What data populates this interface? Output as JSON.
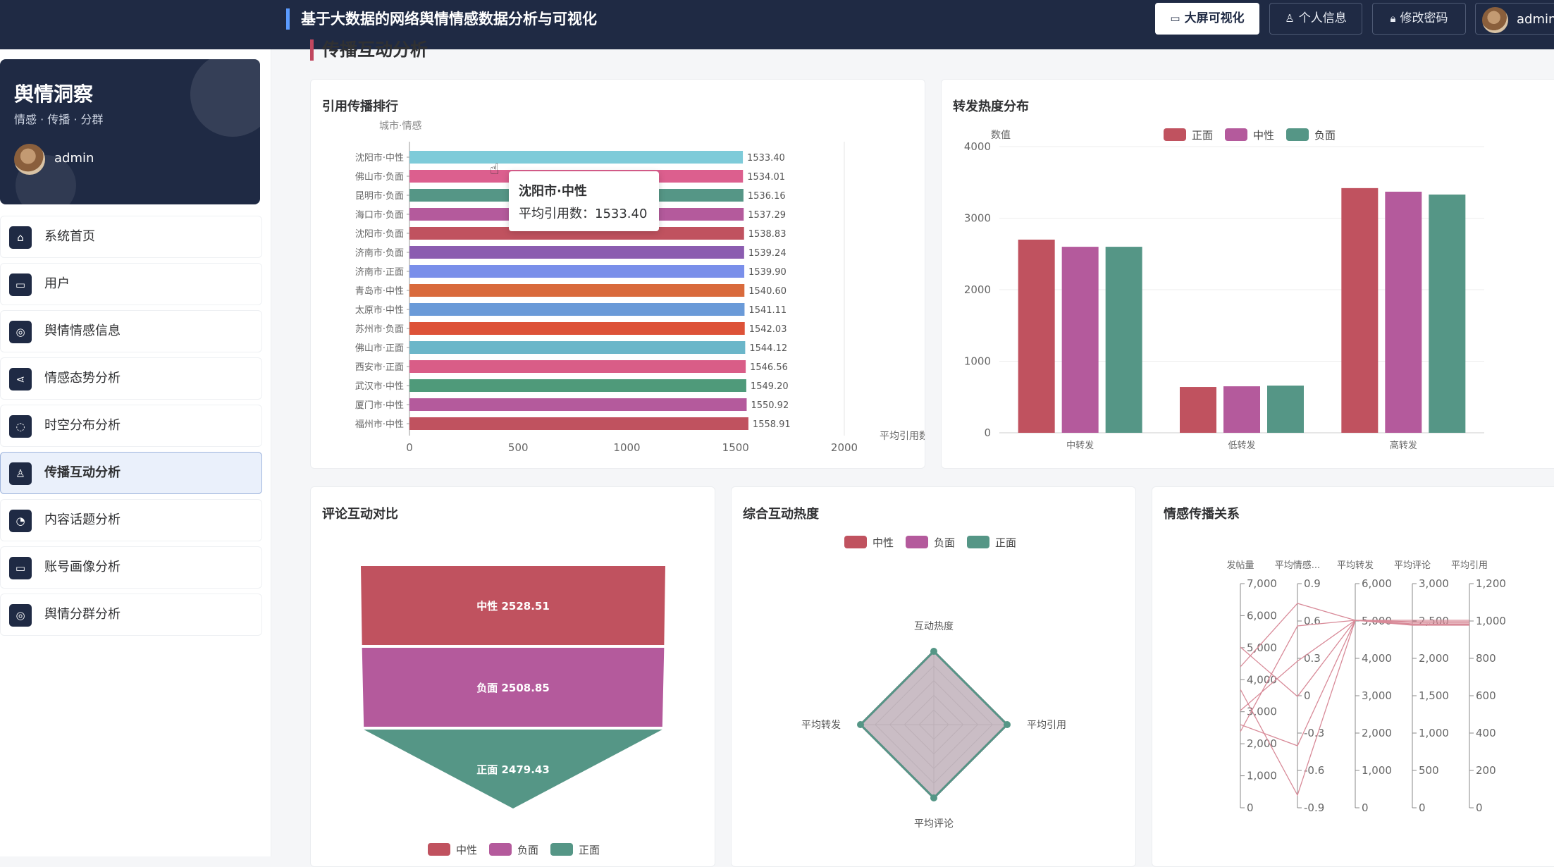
{
  "header": {
    "title": "基于大数据的网络舆情情感数据分析与可视化",
    "btn_screen": "大屏可视化",
    "btn_info": "个人信息",
    "btn_pwd": "修改密码",
    "user": "admin"
  },
  "sidebar": {
    "brand_name": "舆情洞察",
    "brand_sub": "情感 · 传播 · 分群",
    "user": "admin",
    "items": [
      {
        "label": "系统首页",
        "icon": "home-icon"
      },
      {
        "label": "用户",
        "icon": "monitor-icon"
      },
      {
        "label": "舆情情感信息",
        "icon": "location-icon"
      },
      {
        "label": "情感态势分析",
        "icon": "share-icon"
      },
      {
        "label": "时空分布分析",
        "icon": "chat-icon"
      },
      {
        "label": "传播互动分析",
        "icon": "user-icon",
        "active": true
      },
      {
        "label": "内容话题分析",
        "icon": "pie-icon"
      },
      {
        "label": "账号画像分析",
        "icon": "monitor-icon"
      },
      {
        "label": "舆情分群分析",
        "icon": "location-icon"
      }
    ]
  },
  "page": {
    "section_title": "传播互动分析"
  },
  "colors": {
    "zheng": "#c0525f",
    "zhong": "#b45a9c",
    "fu": "#559686",
    "nav_dark": "#1f2a44",
    "accent": "#c0475f"
  },
  "chart_data": [
    {
      "id": "ranking",
      "title": "引用传播排行",
      "type": "bar",
      "orientation": "horizontal",
      "ylabel": "城市·情感",
      "xlabel": "平均引用数",
      "xlim": [
        0,
        2000
      ],
      "xticks": [
        "0",
        "500",
        "1000",
        "1500",
        "2000"
      ],
      "categories": [
        "沈阳市·中性",
        "佛山市·负面",
        "昆明市·负面",
        "海口市·负面",
        "沈阳市·负面",
        "济南市·负面",
        "济南市·正面",
        "青岛市·中性",
        "太原市·中性",
        "苏州市·负面",
        "佛山市·正面",
        "西安市·正面",
        "武汉市·中性",
        "厦门市·中性",
        "福州市·中性"
      ],
      "values": [
        1533.4,
        1534.01,
        1536.16,
        1537.29,
        1538.83,
        1539.24,
        1539.9,
        1540.6,
        1541.11,
        1542.03,
        1544.12,
        1546.56,
        1549.2,
        1550.92,
        1558.91
      ],
      "value_labels": [
        "1533.40",
        "1534.01",
        "1536.16",
        "1537.29",
        "1538.83",
        "1539.24",
        "1539.90",
        "1540.60",
        "1541.11",
        "1542.03",
        "1544.12",
        "1546.56",
        "1549.20",
        "1550.92",
        "1558.91"
      ],
      "bar_colors": [
        "#7ecbd9",
        "#dc5f8e",
        "#559686",
        "#b45a9c",
        "#c0525f",
        "#8b5cb0",
        "#7a8fea",
        "#d96a3c",
        "#6a9ad8",
        "#dd5238",
        "#6bb6c9",
        "#d95d87",
        "#4f9a7a",
        "#b45a9c",
        "#c0525f"
      ],
      "tooltip": {
        "title": "沈阳市·中性",
        "text": "平均引用数：1533.40"
      }
    },
    {
      "id": "forward",
      "title": "转发热度分布",
      "type": "bar",
      "ylabel": "数值",
      "ylim": [
        0,
        4000
      ],
      "yticks": [
        "0",
        "1000",
        "2000",
        "3000",
        "4000"
      ],
      "categories": [
        "中转发",
        "低转发",
        "高转发"
      ],
      "series": [
        {
          "name": "正面",
          "color": "#c0525f",
          "values": [
            2700,
            640,
            3420
          ]
        },
        {
          "name": "中性",
          "color": "#b45a9c",
          "values": [
            2600,
            650,
            3370
          ]
        },
        {
          "name": "负面",
          "color": "#559686",
          "values": [
            2600,
            660,
            3330
          ]
        }
      ],
      "legend": "top-center"
    },
    {
      "id": "funnel",
      "title": "评论互动对比",
      "type": "funnel",
      "labels": [
        "中性 2528.51",
        "负面 2508.85",
        "正面 2479.43"
      ],
      "names": [
        "中性",
        "负面",
        "正面"
      ],
      "values": [
        2528.51,
        2508.85,
        2479.43
      ],
      "colors": [
        "#c0525f",
        "#b45a9c",
        "#559686"
      ],
      "legend": "bottom-center"
    },
    {
      "id": "radar",
      "title": "综合互动热度",
      "type": "radar",
      "indicators": [
        "互动热度",
        "平均引用",
        "平均评论",
        "平均转发"
      ],
      "series": [
        {
          "name": "中性",
          "color": "#c0525f",
          "values": [
            0.5,
            0.5,
            0.5,
            0.5
          ]
        },
        {
          "name": "负面",
          "color": "#b45a9c",
          "values": [
            0.5,
            0.5,
            0.5,
            0.5
          ]
        },
        {
          "name": "正面",
          "color": "#559686",
          "values": [
            0.5,
            0.5,
            0.5,
            0.5
          ]
        }
      ],
      "legend": "top-center"
    },
    {
      "id": "parallel",
      "title": "情感传播关系",
      "type": "parallel",
      "axes": [
        {
          "name": "发帖量",
          "ticks": [
            "0",
            "1,000",
            "2,000",
            "3,000",
            "4,000",
            "5,000",
            "6,000",
            "7,000"
          ]
        },
        {
          "name": "平均情感...",
          "ticks": [
            "-0.9",
            "-0.6",
            "-0.3",
            "0",
            "0.3",
            "0.6",
            "0.9"
          ]
        },
        {
          "name": "平均转发",
          "ticks": [
            "0",
            "1,000",
            "2,000",
            "3,000",
            "4,000",
            "5,000",
            "6,000"
          ]
        },
        {
          "name": "平均评论",
          "ticks": [
            "0",
            "500",
            "1,000",
            "1,500",
            "2,000",
            "2,500",
            "3,000"
          ]
        },
        {
          "name": "平均引用",
          "ticks": [
            "0",
            "200",
            "400",
            "600",
            "800",
            "1,000",
            "1,200"
          ]
        }
      ],
      "line_color": "#d88a98"
    }
  ]
}
